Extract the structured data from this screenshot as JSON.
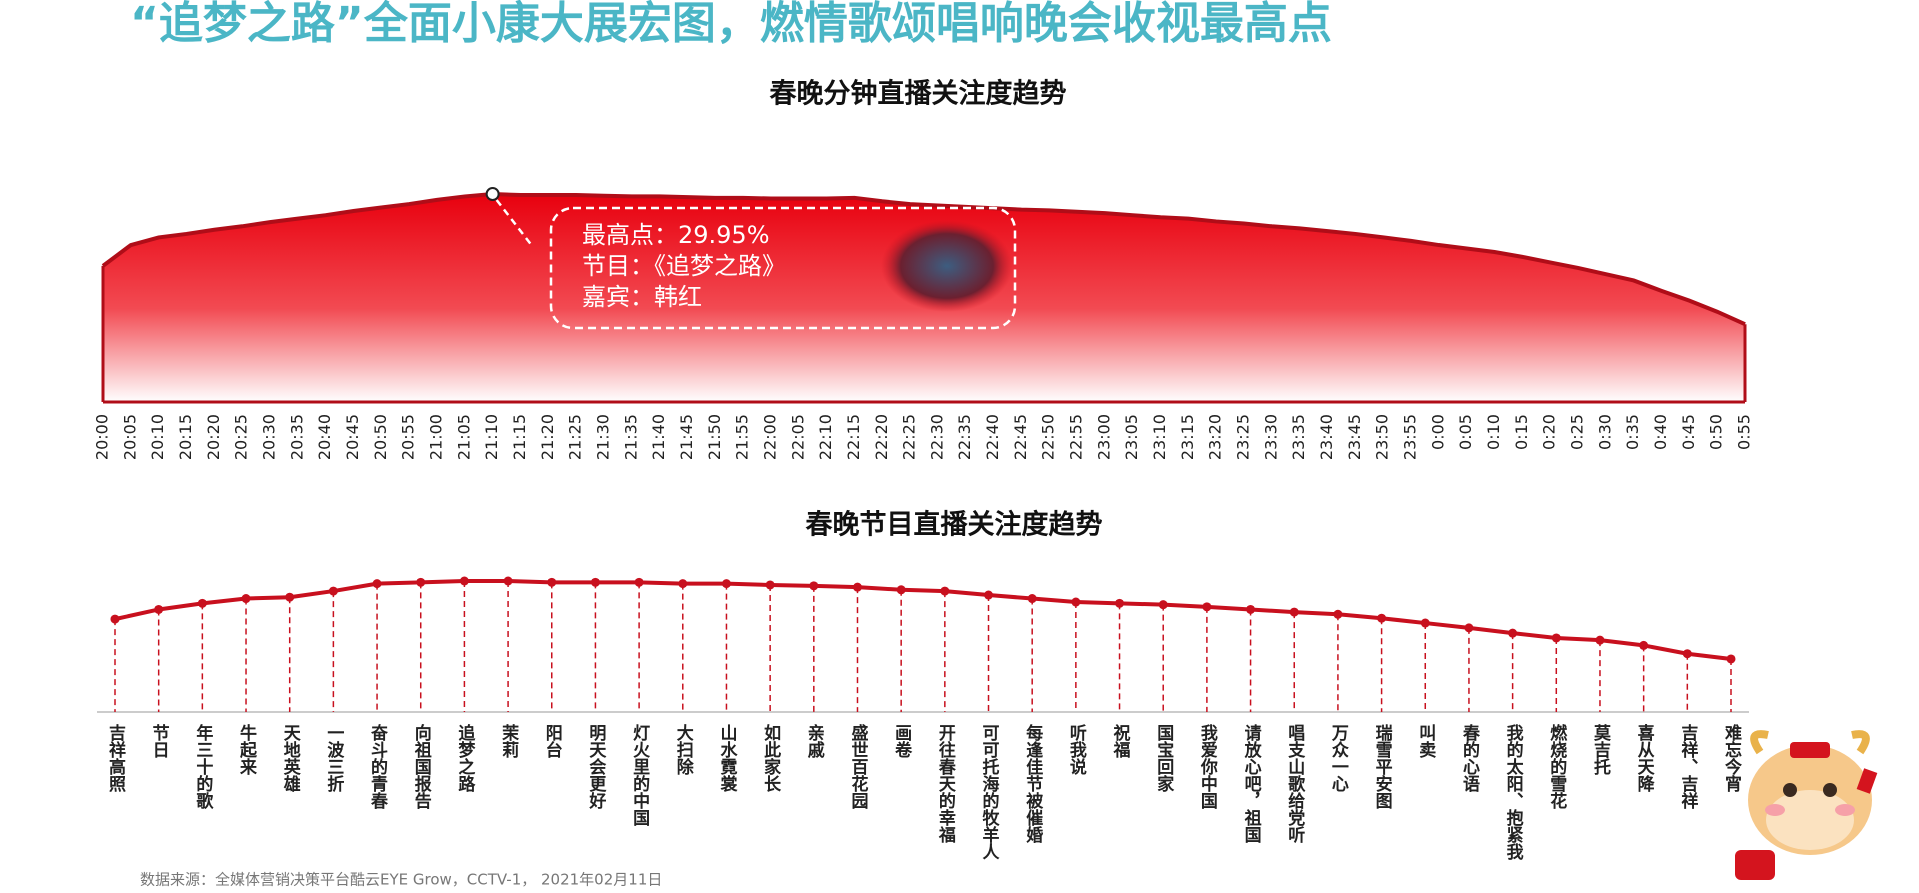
{
  "header": {
    "title": "“追梦之路”全面小康大展宏图，燃情歌颂唱响晚会收视最高点"
  },
  "chart_data": [
    {
      "type": "area",
      "title": "春晚分钟直播关注度趋势",
      "color": "#c8101e",
      "categories": [
        "20:00",
        "20:05",
        "20:10",
        "20:15",
        "20:20",
        "20:25",
        "20:30",
        "20:35",
        "20:40",
        "20:45",
        "20:50",
        "20:55",
        "21:00",
        "21:05",
        "21:10",
        "21:15",
        "21:20",
        "21:25",
        "21:30",
        "21:35",
        "21:40",
        "21:45",
        "21:50",
        "21:55",
        "22:00",
        "22:05",
        "22:10",
        "22:15",
        "22:20",
        "22:25",
        "22:30",
        "22:35",
        "22:40",
        "22:45",
        "22:50",
        "22:55",
        "23:00",
        "23:05",
        "23:10",
        "23:15",
        "23:20",
        "23:25",
        "23:30",
        "23:35",
        "23:40",
        "23:45",
        "23:50",
        "23:55",
        "0:00",
        "0:05",
        "0:10",
        "0:15",
        "0:20",
        "0:25",
        "0:30",
        "0:35",
        "0:40",
        "0:45",
        "0:50",
        "0:55"
      ],
      "values": [
        19.6,
        22.6,
        23.7,
        24.2,
        24.8,
        25.3,
        25.9,
        26.4,
        26.9,
        27.5,
        28.0,
        28.5,
        29.1,
        29.6,
        29.95,
        29.8,
        29.8,
        29.8,
        29.7,
        29.6,
        29.6,
        29.5,
        29.4,
        29.4,
        29.3,
        29.3,
        29.3,
        29.4,
        28.9,
        28.5,
        28.3,
        28.1,
        27.9,
        27.7,
        27.6,
        27.4,
        27.2,
        26.9,
        26.6,
        26.4,
        26.0,
        25.7,
        25.3,
        25.0,
        24.6,
        24.2,
        23.7,
        23.2,
        22.6,
        22.1,
        21.6,
        20.9,
        20.1,
        19.3,
        18.4,
        17.5,
        16.0,
        14.6,
        13.0,
        11.2
      ],
      "annotation": [
        "最高点：29.95%",
        "节目：《追梦之路》",
        "嘉宾：韩红"
      ]
    },
    {
      "type": "line",
      "title": "春晚节目直播关注度趋势",
      "color": "#c8101e",
      "categories": [
        "吉祥高照",
        "节日",
        "年三十的歌",
        "牛起来",
        "天地英雄",
        "一波三折",
        "奋斗的青春",
        "向祖国报告",
        "追梦之路",
        "茉莉",
        "阳台",
        "明天会更好",
        "灯火里的中国",
        "大扫除",
        "山水霓裳",
        "如此家长",
        "亲戚",
        "盛世百花园",
        "画卷",
        "开往春天的幸福",
        "可可托海的牧羊人",
        "每逢佳节被催婚",
        "听我说",
        "祝福",
        "国宝回家",
        "我爱你中国",
        "请放心吧，祖国",
        "唱支山歌给党听",
        "万众一心",
        "瑞雪平安图",
        "叫卖",
        "春的心语",
        "我的太阳、抱紧我",
        "燃烧的雪花",
        "莫吉托",
        "喜从天降",
        "吉祥、吉祥",
        "难忘今宵"
      ],
      "values": [
        21.2,
        23.4,
        24.8,
        25.9,
        26.2,
        27.6,
        29.3,
        29.6,
        29.9,
        29.9,
        29.6,
        29.6,
        29.6,
        29.3,
        29.3,
        29.0,
        28.8,
        28.5,
        27.9,
        27.6,
        26.7,
        25.9,
        25.1,
        24.8,
        24.5,
        24.0,
        23.4,
        22.8,
        22.3,
        21.4,
        20.3,
        19.2,
        18.0,
        16.9,
        16.4,
        15.2,
        13.3,
        12.1
      ]
    }
  ],
  "source": "数据来源：全媒体营销决策平台酷云EYE Grow，CCTV-1， 2021年02月11日"
}
